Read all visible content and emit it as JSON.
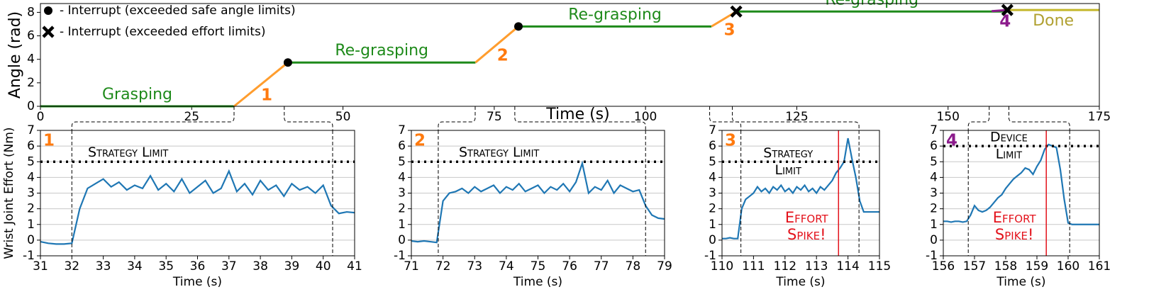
{
  "chart_data": [
    {
      "type": "line",
      "ylabel": "Angle (rad)",
      "xlabel": "Time (s)",
      "xlim": [
        0,
        175
      ],
      "xticks": [
        0,
        25,
        50,
        75,
        100,
        125,
        150,
        175
      ],
      "ylim": [
        0,
        8.75
      ],
      "yticks": [
        0,
        2,
        4,
        6,
        8
      ],
      "series": [
        {
          "label": "Grasping",
          "label_position": "above",
          "color": "#1e8a1a",
          "x": [
            0,
            32
          ],
          "values": [
            0,
            0
          ]
        },
        {
          "label": "1",
          "label_position": "below",
          "color": "#ff9d2e",
          "label_color": "#ff7a0e",
          "x": [
            32,
            40.9
          ],
          "values": [
            0,
            3.73
          ]
        },
        {
          "label": "Re-grasping",
          "label_position": "above",
          "color": "#1e8a1a",
          "x": [
            40.9,
            71.9
          ],
          "values": [
            3.73,
            3.73
          ]
        },
        {
          "label": "2",
          "label_position": "below",
          "color": "#ff9d2e",
          "label_color": "#ff7a0e",
          "x": [
            71.9,
            79
          ],
          "values": [
            3.73,
            6.8
          ]
        },
        {
          "label": "Re-grasping",
          "label_position": "above",
          "color": "#1e8a1a",
          "x": [
            79,
            110.9
          ],
          "values": [
            6.8,
            6.8
          ]
        },
        {
          "label": "3",
          "label_position": "below",
          "color": "#ff9d2e",
          "label_color": "#ff7a0e",
          "x": [
            110.9,
            115
          ],
          "values": [
            6.8,
            8.07
          ]
        },
        {
          "label": "Re-grasping",
          "label_position": "above",
          "color": "#1e8a1a",
          "x": [
            115,
            159.8
          ],
          "values": [
            8.07,
            8.07
          ]
        },
        {
          "label": "4",
          "label_position": "below",
          "color": "#8b1a8b",
          "label_color": "#8b1a8b",
          "x": [
            157.2,
            159.8
          ],
          "values": [
            8.1,
            8.2
          ]
        },
        {
          "label": "Done",
          "label_position": "below",
          "color": "#c4b72a",
          "label_color": "#b0a030",
          "x": [
            159.8,
            175
          ],
          "values": [
            8.2,
            8.2
          ]
        }
      ],
      "markers": [
        {
          "shape": "dot",
          "x": 40.9,
          "y": 3.73
        },
        {
          "shape": "dot",
          "x": 79,
          "y": 6.8
        },
        {
          "shape": "cross",
          "x": 115,
          "y": 8.07
        },
        {
          "shape": "cross",
          "x": 159.8,
          "y": 8.2
        }
      ],
      "legend": [
        {
          "shape": "dot",
          "label": "- Interrupt (exceeded safe angle limits)"
        },
        {
          "shape": "cross",
          "label": "- Interrupt (exceeded effort limits)"
        }
      ]
    },
    {
      "type": "line",
      "corner_label": "1",
      "corner_color": "#ff7a0e",
      "ylabel": "Wrist Joint Effort (Nm)",
      "xlabel": "Time (s)",
      "xlim": [
        31,
        41
      ],
      "xticks": [
        31,
        32,
        33,
        34,
        35,
        36,
        37,
        38,
        39,
        40,
        41
      ],
      "ylim": [
        -1,
        7
      ],
      "yticks": [
        -1,
        0,
        1,
        2,
        3,
        4,
        5,
        6,
        7
      ],
      "grid": true,
      "color": "#1f77b4",
      "x": [
        31,
        31.25,
        31.5,
        31.75,
        32,
        32.25,
        32.5,
        32.75,
        33,
        33.25,
        33.5,
        33.75,
        34,
        34.25,
        34.5,
        34.75,
        35,
        35.25,
        35.5,
        35.75,
        36,
        36.25,
        36.5,
        36.75,
        37,
        37.25,
        37.5,
        37.75,
        38,
        38.25,
        38.5,
        38.75,
        39,
        39.25,
        39.5,
        39.75,
        40,
        40.25,
        40.5,
        40.75,
        41
      ],
      "values": [
        -0.1,
        -0.2,
        -0.25,
        -0.25,
        -0.2,
        2.0,
        3.3,
        3.6,
        3.9,
        3.4,
        3.7,
        3.2,
        3.5,
        3.3,
        4.1,
        3.2,
        3.6,
        3.1,
        3.9,
        3.0,
        3.4,
        3.8,
        3.0,
        3.3,
        4.4,
        3.1,
        3.6,
        2.9,
        3.8,
        3.2,
        3.5,
        2.8,
        3.6,
        3.2,
        3.4,
        3.0,
        3.5,
        2.2,
        1.7,
        1.8,
        1.75
      ],
      "limit": {
        "value": 5,
        "label": [
          "Strategy Limit"
        ]
      },
      "zoom_edges": [
        32,
        40.3
      ]
    },
    {
      "type": "line",
      "corner_label": "2",
      "corner_color": "#ff7a0e",
      "xlabel": "Time (s)",
      "xlim": [
        71,
        79
      ],
      "xticks": [
        71,
        72,
        73,
        74,
        75,
        76,
        77,
        78,
        79
      ],
      "ylim": [
        -1,
        7
      ],
      "yticks": [
        -1,
        0,
        1,
        2,
        3,
        4,
        5,
        6,
        7
      ],
      "grid": true,
      "color": "#1f77b4",
      "x": [
        71,
        71.2,
        71.4,
        71.6,
        71.8,
        72,
        72.2,
        72.4,
        72.6,
        72.8,
        73,
        73.2,
        73.4,
        73.6,
        73.8,
        74,
        74.2,
        74.4,
        74.6,
        74.8,
        75,
        75.2,
        75.4,
        75.6,
        75.8,
        76,
        76.2,
        76.4,
        76.6,
        76.8,
        77,
        77.2,
        77.4,
        77.6,
        77.8,
        78,
        78.2,
        78.4,
        78.6,
        78.8,
        79
      ],
      "values": [
        -0.05,
        -0.1,
        -0.05,
        -0.1,
        -0.15,
        2.5,
        3.0,
        3.1,
        3.3,
        3.0,
        3.4,
        3.1,
        3.3,
        3.5,
        3.0,
        3.4,
        3.2,
        3.6,
        3.1,
        3.3,
        3.5,
        3.0,
        3.4,
        3.2,
        3.6,
        3.1,
        3.7,
        4.9,
        3.0,
        3.4,
        3.2,
        3.8,
        3.0,
        3.5,
        3.3,
        3.1,
        3.2,
        2.2,
        1.6,
        1.4,
        1.35
      ],
      "limit": {
        "value": 5,
        "label": [
          "Strategy Limit"
        ]
      },
      "zoom_edges": [
        71.85,
        78.4
      ]
    },
    {
      "type": "line",
      "corner_label": "3",
      "corner_color": "#ff7a0e",
      "xlabel": "Time (s)",
      "xlim": [
        110,
        115
      ],
      "xticks": [
        110,
        111,
        112,
        113,
        114,
        115
      ],
      "ylim": [
        -1,
        7
      ],
      "yticks": [
        -1,
        0,
        1,
        2,
        3,
        4,
        5,
        6,
        7
      ],
      "grid": true,
      "color": "#1f77b4",
      "x": [
        110,
        110.125,
        110.25,
        110.375,
        110.5,
        110.625,
        110.75,
        110.875,
        111,
        111.125,
        111.25,
        111.375,
        111.5,
        111.625,
        111.75,
        111.875,
        112,
        112.125,
        112.25,
        112.375,
        112.5,
        112.625,
        112.75,
        112.875,
        113,
        113.125,
        113.25,
        113.375,
        113.5,
        113.625,
        113.75,
        113.875,
        114,
        114.125,
        114.25,
        114.375,
        114.5,
        114.625,
        114.75,
        114.875,
        115
      ],
      "values": [
        0.1,
        0.1,
        0.15,
        0.1,
        0.1,
        2.0,
        2.6,
        2.8,
        3.0,
        3.4,
        3.1,
        3.3,
        3.0,
        3.4,
        3.2,
        3.5,
        3.1,
        3.3,
        3.0,
        3.4,
        3.2,
        3.5,
        3.1,
        3.3,
        3.0,
        3.4,
        3.2,
        3.5,
        3.8,
        4.3,
        4.6,
        5.0,
        6.5,
        5.2,
        4.0,
        2.5,
        1.8,
        1.8,
        1.8,
        1.8,
        1.8
      ],
      "limit": {
        "value": 5,
        "label": [
          "Strategy",
          "Limit"
        ]
      },
      "zoom_edges": [
        110.6,
        114.35
      ],
      "spike": {
        "x": 113.7,
        "label": [
          "Effort",
          "Spike!"
        ]
      }
    },
    {
      "type": "line",
      "corner_label": "4",
      "corner_color": "#8b1a8b",
      "xlabel": "Time (s)",
      "xlim": [
        156,
        161
      ],
      "xticks": [
        156,
        157,
        158,
        159,
        160,
        161
      ],
      "ylim": [
        -1,
        7
      ],
      "yticks": [
        -1,
        0,
        1,
        2,
        3,
        4,
        5,
        6,
        7
      ],
      "grid": true,
      "color": "#1f77b4",
      "x": [
        156,
        156.125,
        156.25,
        156.375,
        156.5,
        156.625,
        156.75,
        156.875,
        157,
        157.125,
        157.25,
        157.375,
        157.5,
        157.625,
        157.75,
        157.875,
        158,
        158.125,
        158.25,
        158.375,
        158.5,
        158.625,
        158.75,
        158.875,
        159,
        159.125,
        159.25,
        159.375,
        159.5,
        159.625,
        159.75,
        159.875,
        160,
        160.125,
        160.25,
        160.375,
        160.5,
        160.625,
        160.75,
        160.875,
        161
      ],
      "values": [
        1.2,
        1.2,
        1.15,
        1.2,
        1.2,
        1.15,
        1.2,
        1.6,
        2.2,
        1.9,
        1.8,
        1.9,
        2.1,
        2.4,
        2.7,
        2.9,
        3.3,
        3.6,
        3.9,
        4.1,
        4.3,
        4.6,
        4.5,
        4.2,
        4.7,
        5.1,
        5.8,
        6.1,
        6.0,
        5.9,
        4.5,
        2.6,
        1.1,
        1.0,
        1.0,
        1.0,
        1.0,
        1.0,
        1.0,
        1.0,
        1.0
      ],
      "limit": {
        "value": 6,
        "label": [
          "Device",
          "Limit"
        ]
      },
      "zoom_edges": [
        156.8,
        160.05
      ],
      "spike": {
        "x": 159.3,
        "label": [
          "Effort",
          "Spike!"
        ]
      }
    }
  ]
}
